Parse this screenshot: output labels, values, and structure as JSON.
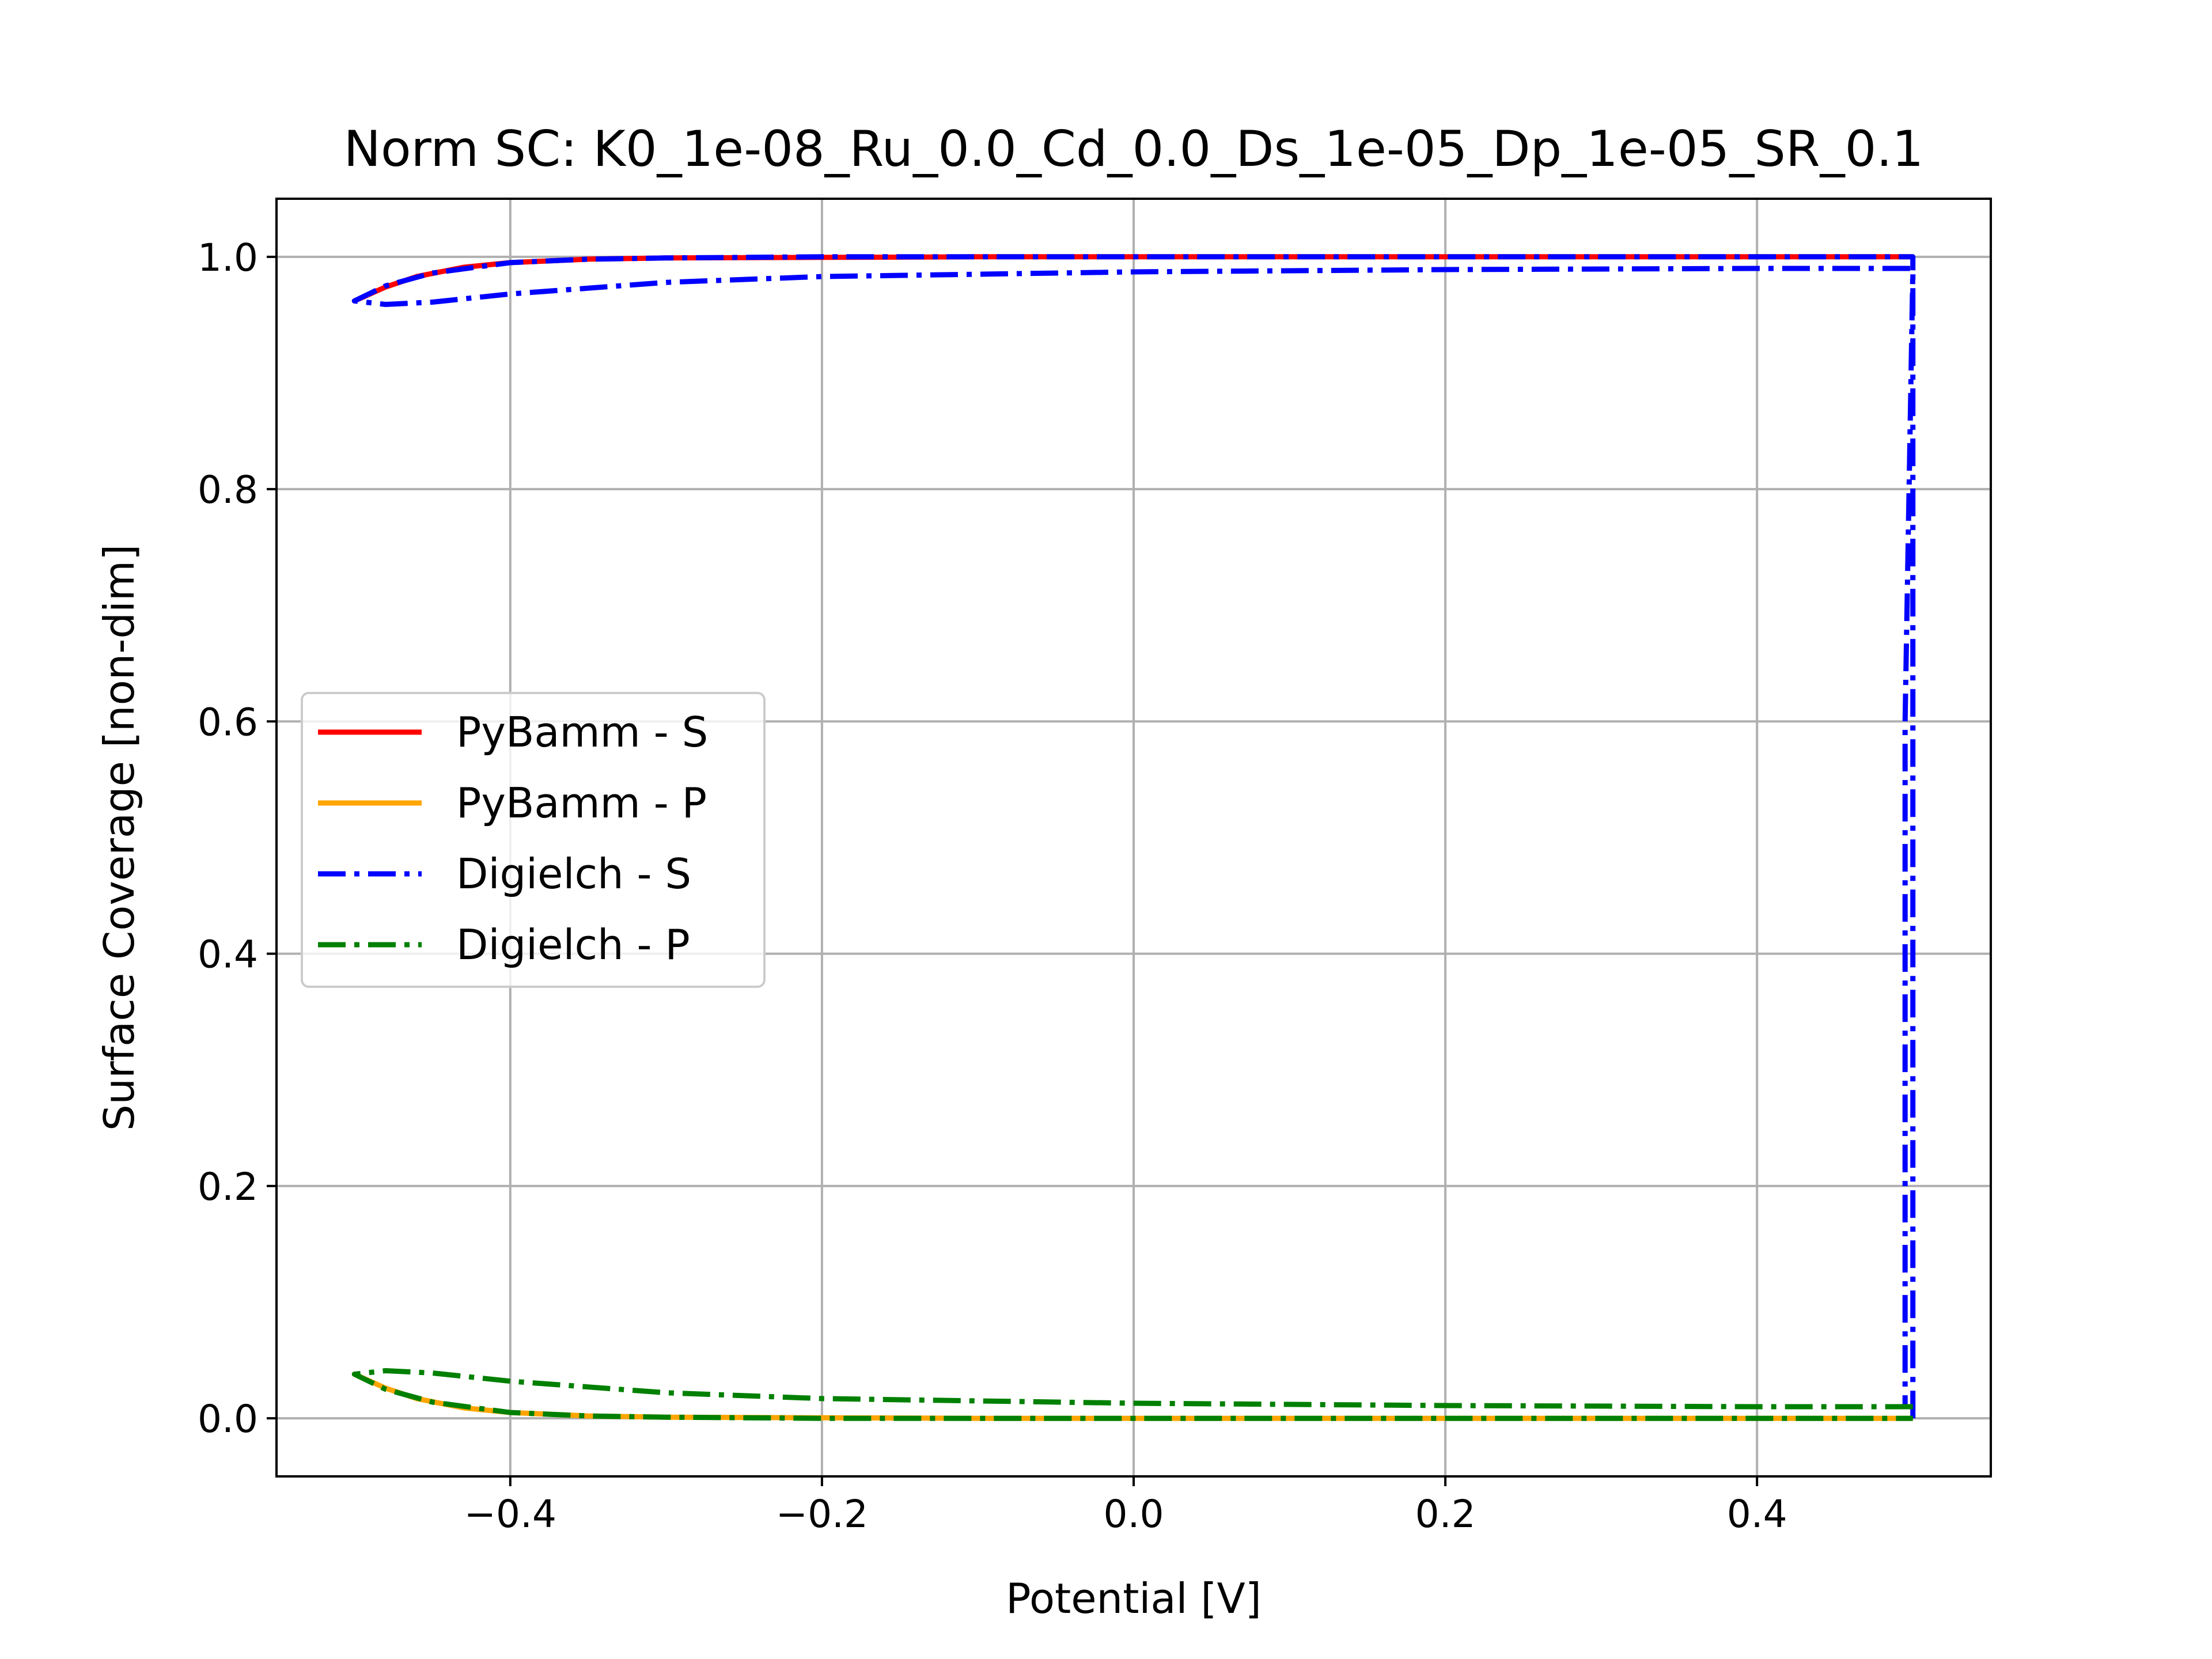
{
  "chart_data": {
    "type": "line",
    "title": "Norm SC: K0_1e-08_Ru_0.0_Cd_0.0_Ds_1e-05_Dp_1e-05_SR_0.1",
    "xlabel": "Potential [V]",
    "ylabel": "Surface Coverage [non-dim]",
    "xlim": [
      -0.55,
      0.55
    ],
    "ylim": [
      -0.05,
      1.05
    ],
    "xticks": [
      -0.4,
      -0.2,
      0.0,
      0.2,
      0.4
    ],
    "xtick_labels": [
      "−0.4",
      "−0.2",
      "0.0",
      "0.2",
      "0.4"
    ],
    "yticks": [
      0.0,
      0.2,
      0.4,
      0.6,
      0.8,
      1.0
    ],
    "ytick_labels": [
      "0.0",
      "0.2",
      "0.4",
      "0.6",
      "0.8",
      "1.0"
    ],
    "grid": true,
    "legend_position": "center-left",
    "series": [
      {
        "name": "PyBamm - S",
        "color": "#ff0000",
        "style": "solid",
        "x": [
          0.5,
          0.3,
          0.1,
          -0.1,
          -0.3,
          -0.35,
          -0.4,
          -0.43,
          -0.46,
          -0.48,
          -0.5,
          -0.48,
          -0.46,
          -0.43,
          -0.4,
          -0.35,
          -0.3,
          -0.1,
          0.1,
          0.3,
          0.5
        ],
        "y": [
          1.0,
          1.0,
          1.0,
          1.0,
          0.999,
          0.998,
          0.995,
          0.991,
          0.983,
          0.974,
          0.962,
          0.974,
          0.983,
          0.991,
          0.995,
          0.998,
          0.999,
          1.0,
          1.0,
          1.0,
          1.0
        ]
      },
      {
        "name": "PyBamm - P",
        "color": "#ffa500",
        "style": "solid",
        "x": [
          0.5,
          0.3,
          0.1,
          -0.1,
          -0.3,
          -0.35,
          -0.4,
          -0.43,
          -0.46,
          -0.48,
          -0.5,
          -0.48,
          -0.46,
          -0.43,
          -0.4,
          -0.35,
          -0.3,
          -0.1,
          0.1,
          0.3,
          0.5
        ],
        "y": [
          0.0,
          0.0,
          0.0,
          0.0,
          0.001,
          0.002,
          0.005,
          0.009,
          0.017,
          0.026,
          0.038,
          0.026,
          0.017,
          0.009,
          0.005,
          0.002,
          0.001,
          0.0,
          0.0,
          0.0,
          0.0
        ]
      },
      {
        "name": "Digielch - S",
        "color": "#0000ff",
        "style": "dashdot",
        "x": [
          0.5,
          0.5,
          0.4,
          0.2,
          0.0,
          -0.2,
          -0.3,
          -0.4,
          -0.45,
          -0.48,
          -0.5,
          -0.48,
          -0.45,
          -0.4,
          -0.35,
          -0.3,
          -0.2,
          0.0,
          0.2,
          0.4,
          0.5,
          0.5,
          0.495,
          0.495
        ],
        "y": [
          0.0,
          0.99,
          0.99,
          0.989,
          0.987,
          0.983,
          0.978,
          0.968,
          0.961,
          0.959,
          0.962,
          0.975,
          0.986,
          0.995,
          0.998,
          0.999,
          1.0,
          1.0,
          1.0,
          1.0,
          1.0,
          0.99,
          0.6,
          0.01
        ]
      },
      {
        "name": "Digielch - P",
        "color": "#008000",
        "style": "dashdot",
        "x": [
          0.5,
          0.4,
          0.2,
          0.0,
          -0.2,
          -0.3,
          -0.4,
          -0.45,
          -0.48,
          -0.5,
          -0.48,
          -0.45,
          -0.4,
          -0.35,
          -0.3,
          -0.2,
          0.0,
          0.2,
          0.4,
          0.5
        ],
        "y": [
          0.01,
          0.01,
          0.011,
          0.013,
          0.017,
          0.022,
          0.032,
          0.039,
          0.041,
          0.038,
          0.025,
          0.014,
          0.005,
          0.002,
          0.001,
          0.0,
          0.0,
          0.0,
          0.0,
          0.0
        ]
      }
    ]
  }
}
